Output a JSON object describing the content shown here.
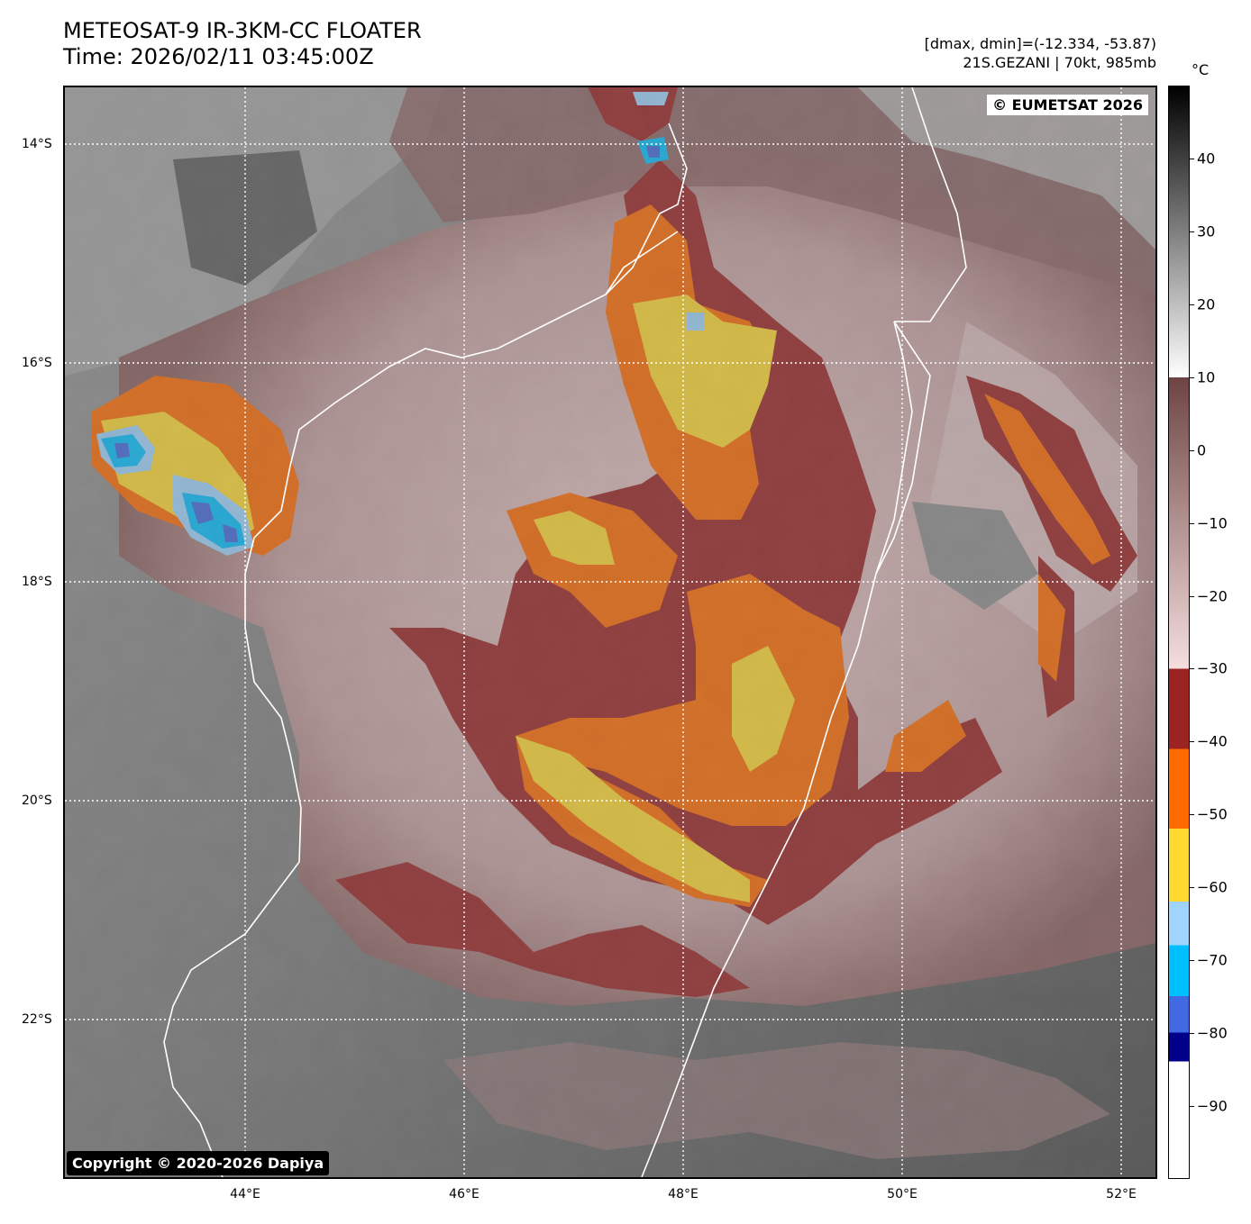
{
  "title": {
    "line1": "METEOSAT-9 IR-3KM-CC FLOATER",
    "line2": "Time: 2026/02/11 03:45:00Z"
  },
  "info": {
    "range": "[dmax, dmin]=(-12.334, -53.87)",
    "storm": "21S.GEZANI | 70kt, 985mb"
  },
  "badges": {
    "eumetsat": "© EUMETSAT 2026",
    "copyright": "Copyright © 2020-2026 Dapiya"
  },
  "latitude_labels": [
    "14°S",
    "16°S",
    "18°S",
    "20°S",
    "22°S"
  ],
  "longitude_labels": [
    "44°E",
    "46°E",
    "48°E",
    "50°E",
    "52°E"
  ],
  "colorbar": {
    "unit": "°C",
    "tick_labels": [
      "40",
      "30",
      "20",
      "10",
      "0",
      "−10",
      "−20",
      "−30",
      "−40",
      "−50",
      "−60",
      "−70",
      "−80",
      "−90"
    ],
    "tick_values": [
      40,
      30,
      20,
      10,
      0,
      -10,
      -20,
      -30,
      -40,
      -50,
      -60,
      -70,
      -80,
      -90
    ],
    "range": [
      -100,
      50
    ],
    "stops": [
      {
        "from": 50,
        "to": 10,
        "colors": [
          "#000000",
          "#ffffff"
        ]
      },
      {
        "from": 10,
        "to": -30,
        "colors": [
          "#6e4444",
          "#f5dede"
        ]
      },
      {
        "from": -30,
        "to": -41,
        "color": "#9b2323"
      },
      {
        "from": -41,
        "to": -52,
        "color": "#ff6a00"
      },
      {
        "from": -52,
        "to": -62,
        "color": "#ffd930"
      },
      {
        "from": -62,
        "to": -68,
        "color": "#9fd4ff"
      },
      {
        "from": -68,
        "to": -75,
        "color": "#00bfff"
      },
      {
        "from": -75,
        "to": -80,
        "color": "#4169e1"
      },
      {
        "from": -80,
        "to": -84,
        "color": "#00008b"
      },
      {
        "from": -84,
        "to": -100,
        "color": "#ffffff"
      }
    ]
  },
  "map_extent": {
    "lon_min": 42.4,
    "lon_max": 52.4,
    "lat_min": -23.45,
    "lat_max": -13.45
  },
  "grid": {
    "lons": [
      44,
      46,
      48,
      50,
      52
    ],
    "lats": [
      -14,
      -16,
      -18,
      -20,
      -22
    ]
  }
}
